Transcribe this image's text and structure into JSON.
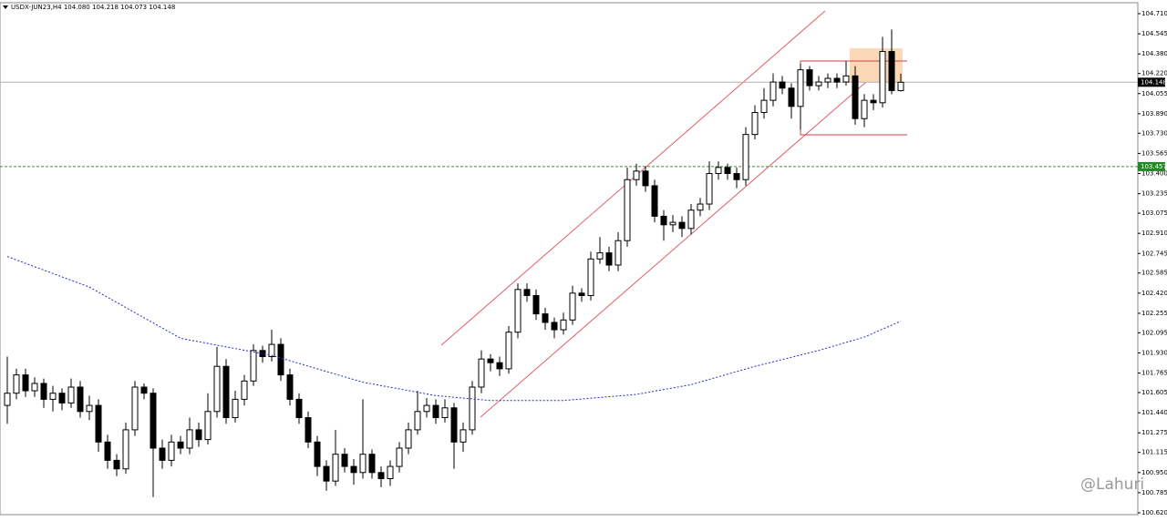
{
  "chart_data": {
    "type": "candlestick",
    "header": "USDX-JUN23,H4  104.080 104.218 104.073 104.148",
    "watermark": "@Lahuri",
    "ylim": [
      100.62,
      104.71
    ],
    "yticks": [
      {
        "value": 104.71,
        "label": "104.710"
      },
      104.545,
      {
        "value": 104.38,
        "label": "104.380"
      },
      {
        "value": 104.22,
        "label": "104.220"
      },
      104.055,
      {
        "value": 103.89,
        "label": "103.890"
      },
      {
        "value": 103.73,
        "label": "103.730"
      },
      103.565,
      {
        "value": 103.4,
        "label": "103.400"
      },
      103.235,
      103.075,
      {
        "value": 102.91,
        "label": "102.910"
      },
      102.745,
      102.585,
      {
        "value": 102.42,
        "label": "102.420"
      },
      102.255,
      102.095,
      {
        "value": 101.93,
        "label": "101.930"
      },
      101.765,
      101.605,
      {
        "value": 101.44,
        "label": "101.440"
      },
      101.275,
      101.115,
      {
        "value": 100.95,
        "label": "100.950"
      },
      100.785,
      {
        "value": 100.62,
        "label": "100.620"
      }
    ],
    "current_price": 104.148,
    "level_price": 103.457,
    "ohlc": [
      [
        101.5,
        101.9,
        101.35,
        101.6
      ],
      [
        101.6,
        101.8,
        101.55,
        101.75
      ],
      [
        101.75,
        101.8,
        101.57,
        101.62
      ],
      [
        101.62,
        101.73,
        101.57,
        101.68
      ],
      [
        101.68,
        101.72,
        101.48,
        101.55
      ],
      [
        101.55,
        101.66,
        101.45,
        101.6
      ],
      [
        101.6,
        101.64,
        101.46,
        101.52
      ],
      [
        101.52,
        101.72,
        101.48,
        101.65
      ],
      [
        101.65,
        101.7,
        101.4,
        101.45
      ],
      [
        101.45,
        101.58,
        101.38,
        101.5
      ],
      [
        101.5,
        101.55,
        101.12,
        101.2
      ],
      [
        101.2,
        101.26,
        100.98,
        101.05
      ],
      [
        101.05,
        101.1,
        100.92,
        100.98
      ],
      [
        100.98,
        101.36,
        100.94,
        101.3
      ],
      [
        101.3,
        101.7,
        101.25,
        101.65
      ],
      [
        101.65,
        101.68,
        101.55,
        101.6
      ],
      [
        101.6,
        101.64,
        100.75,
        101.15
      ],
      [
        101.15,
        101.22,
        100.98,
        101.05
      ],
      [
        101.05,
        101.26,
        101.0,
        101.2
      ],
      [
        101.2,
        101.25,
        101.1,
        101.15
      ],
      [
        101.15,
        101.4,
        101.1,
        101.3
      ],
      [
        101.3,
        101.36,
        101.16,
        101.22
      ],
      [
        101.22,
        101.6,
        101.18,
        101.45
      ],
      [
        101.45,
        101.98,
        101.4,
        101.82
      ],
      [
        101.82,
        101.88,
        101.35,
        101.4
      ],
      [
        101.4,
        101.62,
        101.36,
        101.55
      ],
      [
        101.55,
        101.75,
        101.5,
        101.7
      ],
      [
        101.7,
        102.0,
        101.66,
        101.95
      ],
      [
        101.95,
        101.99,
        101.85,
        101.9
      ],
      [
        101.9,
        102.12,
        101.86,
        102.0
      ],
      [
        102.0,
        102.05,
        101.7,
        101.75
      ],
      [
        101.75,
        101.8,
        101.5,
        101.55
      ],
      [
        101.55,
        101.6,
        101.35,
        101.4
      ],
      [
        101.4,
        101.45,
        101.15,
        101.2
      ],
      [
        101.2,
        101.25,
        100.92,
        101.0
      ],
      [
        101.0,
        101.05,
        100.8,
        100.88
      ],
      [
        100.88,
        101.3,
        100.84,
        101.1
      ],
      [
        101.1,
        101.15,
        100.95,
        101.0
      ],
      [
        101.0,
        101.06,
        100.85,
        100.95
      ],
      [
        100.95,
        101.55,
        100.9,
        101.1
      ],
      [
        101.1,
        101.14,
        100.9,
        100.95
      ],
      [
        100.95,
        101.0,
        100.83,
        100.9
      ],
      [
        100.9,
        101.05,
        100.84,
        101.0
      ],
      [
        101.0,
        101.2,
        100.95,
        101.15
      ],
      [
        101.15,
        101.36,
        101.1,
        101.3
      ],
      [
        101.3,
        101.62,
        101.26,
        101.45
      ],
      [
        101.45,
        101.56,
        101.4,
        101.5
      ],
      [
        101.5,
        101.55,
        101.35,
        101.4
      ],
      [
        101.4,
        101.55,
        101.36,
        101.48
      ],
      [
        101.48,
        101.52,
        100.98,
        101.2
      ],
      [
        101.2,
        101.36,
        101.12,
        101.3
      ],
      [
        101.3,
        101.7,
        101.26,
        101.65
      ],
      [
        101.65,
        101.95,
        101.6,
        101.88
      ],
      [
        101.88,
        101.92,
        101.78,
        101.85
      ],
      [
        101.85,
        101.9,
        101.74,
        101.8
      ],
      [
        101.8,
        102.15,
        101.76,
        102.1
      ],
      [
        102.1,
        102.5,
        102.05,
        102.45
      ],
      [
        102.45,
        102.5,
        102.35,
        102.4
      ],
      [
        102.4,
        102.45,
        102.2,
        102.25
      ],
      [
        102.25,
        102.3,
        102.12,
        102.18
      ],
      [
        102.18,
        102.22,
        102.05,
        102.12
      ],
      [
        102.12,
        102.26,
        102.08,
        102.2
      ],
      [
        102.2,
        102.48,
        102.16,
        102.42
      ],
      [
        102.42,
        102.46,
        102.35,
        102.4
      ],
      [
        102.4,
        102.76,
        102.36,
        102.7
      ],
      [
        102.7,
        102.88,
        102.66,
        102.75
      ],
      [
        102.75,
        102.8,
        102.6,
        102.65
      ],
      [
        102.65,
        102.92,
        102.6,
        102.85
      ],
      [
        102.85,
        103.45,
        102.8,
        103.35
      ],
      [
        103.35,
        103.48,
        103.3,
        103.42
      ],
      [
        103.42,
        103.46,
        103.25,
        103.3
      ],
      [
        103.3,
        103.35,
        103.0,
        103.05
      ],
      [
        103.05,
        103.1,
        102.85,
        102.98
      ],
      [
        102.98,
        103.06,
        102.92,
        103.0
      ],
      [
        103.0,
        103.05,
        102.88,
        102.95
      ],
      [
        102.95,
        103.15,
        102.9,
        103.1
      ],
      [
        103.1,
        103.2,
        103.05,
        103.15
      ],
      [
        103.15,
        103.5,
        103.1,
        103.4
      ],
      [
        103.4,
        103.5,
        103.35,
        103.45
      ],
      [
        103.45,
        103.48,
        103.35,
        103.4
      ],
      [
        103.4,
        103.45,
        103.28,
        103.35
      ],
      [
        103.35,
        103.78,
        103.3,
        103.72
      ],
      [
        103.72,
        103.96,
        103.68,
        103.9
      ],
      [
        103.9,
        104.1,
        103.85,
        104.0
      ],
      [
        104.0,
        104.22,
        103.95,
        104.15
      ],
      [
        104.15,
        104.2,
        104.05,
        104.1
      ],
      [
        104.1,
        104.14,
        103.85,
        103.95
      ],
      [
        103.95,
        104.3,
        103.76,
        104.25
      ],
      [
        104.25,
        104.28,
        104.08,
        104.12
      ],
      [
        104.12,
        104.2,
        104.08,
        104.15
      ],
      [
        104.15,
        104.22,
        104.1,
        104.18
      ],
      [
        104.18,
        104.22,
        104.1,
        104.15
      ],
      [
        104.15,
        104.32,
        104.12,
        104.2
      ],
      [
        104.2,
        104.28,
        103.8,
        103.85
      ],
      [
        103.85,
        104.05,
        103.78,
        104.0
      ],
      [
        104.0,
        104.05,
        103.92,
        103.98
      ],
      [
        103.98,
        104.52,
        103.94,
        104.4
      ],
      [
        104.4,
        104.58,
        104.05,
        104.08
      ],
      [
        104.08,
        104.218,
        104.073,
        104.148
      ]
    ],
    "ma": {
      "color": "#1f2fd0",
      "x": [
        0,
        9,
        19,
        29,
        39,
        47,
        53,
        61,
        69,
        75,
        82,
        89,
        94,
        98
      ],
      "values": [
        102.72,
        102.47,
        102.05,
        101.91,
        101.69,
        101.58,
        101.54,
        101.54,
        101.59,
        101.67,
        101.82,
        101.95,
        102.06,
        102.19
      ]
    }
  }
}
